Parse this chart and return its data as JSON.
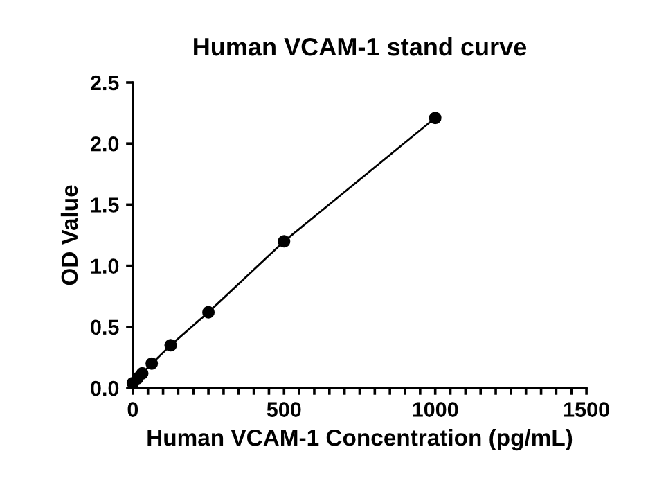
{
  "chart_data": {
    "type": "line",
    "title": "Human VCAM-1 stand curve",
    "xlabel": "Human VCAM-1 Concentration (pg/mL)",
    "ylabel": "OD Value",
    "x": [
      0,
      15.6,
      31.25,
      62.5,
      125,
      250,
      500,
      1000
    ],
    "series": [
      {
        "color": "#000000",
        "values": [
          0.04,
          0.08,
          0.12,
          0.2,
          0.35,
          0.62,
          1.2,
          2.21
        ]
      }
    ],
    "marker": "circle",
    "line_style": "solid",
    "grid": false,
    "xlim": [
      0,
      1500
    ],
    "ylim": [
      0,
      2.5
    ],
    "xticks": [
      0,
      {
        "value": 50,
        "label": null
      },
      {
        "value": 100,
        "label": null
      },
      {
        "value": 150,
        "label": null
      },
      {
        "value": 200,
        "label": null
      },
      {
        "value": 250,
        "label": null
      },
      {
        "value": 300,
        "label": null
      },
      {
        "value": 350,
        "label": null
      },
      {
        "value": 400,
        "label": null
      },
      {
        "value": 450,
        "label": null
      },
      500,
      {
        "value": 550,
        "label": null
      },
      {
        "value": 600,
        "label": null
      },
      {
        "value": 650,
        "label": null
      },
      {
        "value": 700,
        "label": null
      },
      {
        "value": 750,
        "label": null
      },
      {
        "value": 800,
        "label": null
      },
      {
        "value": 850,
        "label": null
      },
      {
        "value": 900,
        "label": null
      },
      {
        "value": 950,
        "label": null
      },
      1000,
      {
        "value": 1050,
        "label": null
      },
      {
        "value": 1100,
        "label": null
      },
      {
        "value": 1150,
        "label": null
      },
      {
        "value": 1200,
        "label": null
      },
      {
        "value": 1250,
        "label": null
      },
      {
        "value": 1300,
        "label": null
      },
      {
        "value": 1350,
        "label": null
      },
      {
        "value": 1400,
        "label": null
      },
      {
        "value": 1450,
        "label": null
      },
      1500
    ],
    "yticks": [
      {
        "value": 0,
        "label": "0.0"
      },
      0.5,
      {
        "value": 1,
        "label": "1.0"
      },
      1.5,
      {
        "value": 2,
        "label": "2.0"
      },
      2.5
    ]
  }
}
